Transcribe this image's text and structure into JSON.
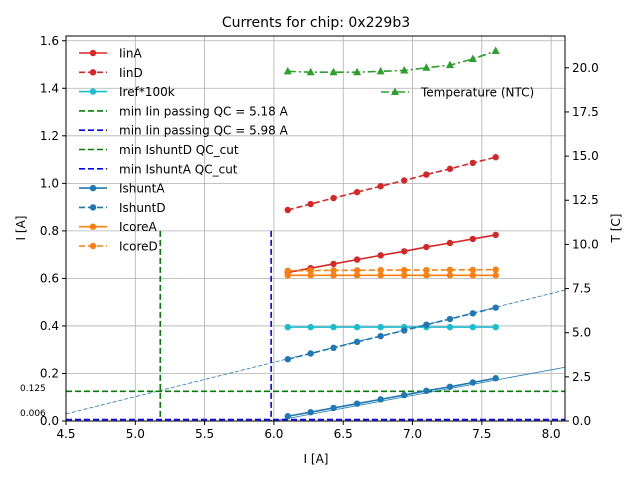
{
  "chart_data": {
    "type": "line",
    "title": "Currents for chip: 0x229b3",
    "xlabel": "I [A]",
    "ylabel": "I [A]",
    "y2label": "T [C]",
    "xlim": [
      4.5,
      8.1
    ],
    "ylim": [
      0.0,
      1.62
    ],
    "y2lim": [
      0.0,
      21.8
    ],
    "xticks": [
      "4.5",
      "5.0",
      "5.5",
      "6.0",
      "6.5",
      "7.0",
      "7.5",
      "8.0"
    ],
    "yticks": [
      "0.0",
      "0.2",
      "0.4",
      "0.6",
      "0.8",
      "1.0",
      "1.2",
      "1.4",
      "1.6"
    ],
    "y2ticks": [
      "0.0",
      "2.5",
      "5.0",
      "7.5",
      "10.0",
      "12.5",
      "15.0",
      "17.5",
      "20.0"
    ],
    "grid": true,
    "x": [
      6.1,
      6.265,
      6.43,
      6.6,
      6.77,
      6.94,
      7.1,
      7.27,
      7.435,
      7.6
    ],
    "series": [
      {
        "name": "IinA",
        "color": "#d62728",
        "style": "solid",
        "marker": "circle",
        "values": [
          0.625,
          0.643,
          0.661,
          0.679,
          0.697,
          0.714,
          0.732,
          0.749,
          0.766,
          0.783
        ]
      },
      {
        "name": "IinD",
        "color": "#d62728",
        "style": "dashed",
        "marker": "circle",
        "values": [
          0.888,
          0.913,
          0.938,
          0.963,
          0.988,
          1.012,
          1.037,
          1.061,
          1.086,
          1.11
        ]
      },
      {
        "name": "Iref*100k",
        "color": "#17becf",
        "style": "solid",
        "marker": "circle",
        "values": [
          0.395,
          0.395,
          0.395,
          0.395,
          0.395,
          0.395,
          0.395,
          0.395,
          0.395,
          0.395
        ]
      },
      {
        "name": "IshuntA",
        "color": "#1f77b4",
        "style": "solid",
        "marker": "circle",
        "values": [
          0.02,
          0.037,
          0.055,
          0.073,
          0.091,
          0.109,
          0.127,
          0.144,
          0.162,
          0.18
        ]
      },
      {
        "name": "IshuntD",
        "color": "#1f77b4",
        "style": "dashed",
        "marker": "circle",
        "values": [
          0.26,
          0.284,
          0.308,
          0.333,
          0.357,
          0.381,
          0.405,
          0.429,
          0.453,
          0.477
        ]
      },
      {
        "name": "IcoreA",
        "color": "#ff7f0e",
        "style": "solid",
        "marker": "circle",
        "values": [
          0.613,
          0.613,
          0.613,
          0.613,
          0.613,
          0.613,
          0.613,
          0.613,
          0.613,
          0.613
        ]
      },
      {
        "name": "IcoreD",
        "color": "#ff7f0e",
        "style": "dashed",
        "marker": "circle",
        "values": [
          0.632,
          0.633,
          0.634,
          0.634,
          0.635,
          0.635,
          0.635,
          0.636,
          0.636,
          0.637
        ]
      },
      {
        "name": "Temperature (NTC)",
        "color": "#2ca02c",
        "style": "dashdot",
        "marker": "triangle",
        "axis": "right",
        "values": [
          19.8,
          19.75,
          19.75,
          19.75,
          19.8,
          19.85,
          20.0,
          20.15,
          20.5,
          20.95
        ]
      }
    ],
    "reference_lines": [
      {
        "name": "min Iin passing QC = 5.18 A",
        "orientation": "vertical",
        "value": 5.18,
        "y_to": 0.8,
        "color": "#008000",
        "style": "dashed"
      },
      {
        "name": "min Iin passing QC = 5.98 A",
        "orientation": "vertical",
        "value": 5.98,
        "y_to": 0.8,
        "color": "#0000ff",
        "style": "dashed"
      },
      {
        "name": "min IshuntD QC_cut",
        "orientation": "horizontal",
        "value": 0.125,
        "color": "#008000",
        "style": "dashed"
      },
      {
        "name": "min IshuntA QC_cut",
        "orientation": "horizontal",
        "value": 0.006,
        "color": "#0000ff",
        "style": "dashed"
      }
    ],
    "fit_lines": [
      {
        "name": "IshuntD fit",
        "color": "#1f77b4",
        "style": "dashed",
        "x1": 4.5,
        "y1": 0.03,
        "x2": 8.1,
        "y2": 0.551
      },
      {
        "name": "IshuntA fit",
        "color": "#1f77b4",
        "style": "solid",
        "x1": 6.0,
        "y1": 0.0,
        "x2": 8.1,
        "y2": 0.226
      }
    ],
    "annotations": [
      {
        "text": "0.125",
        "y": 0.125
      },
      {
        "text": "0.006",
        "y": 0.006
      }
    ],
    "legend_left": [
      "IinA",
      "IinD",
      "Iref*100k",
      "min Iin passing QC = 5.18 A",
      "min Iin passing QC = 5.98 A",
      "min IshuntD QC_cut",
      "min IshuntA QC_cut",
      "IshuntA",
      "IshuntD",
      "IcoreA",
      "IcoreD"
    ],
    "legend_right": [
      "Temperature (NTC)"
    ],
    "legend_placement": "upper-left and upper-right"
  }
}
